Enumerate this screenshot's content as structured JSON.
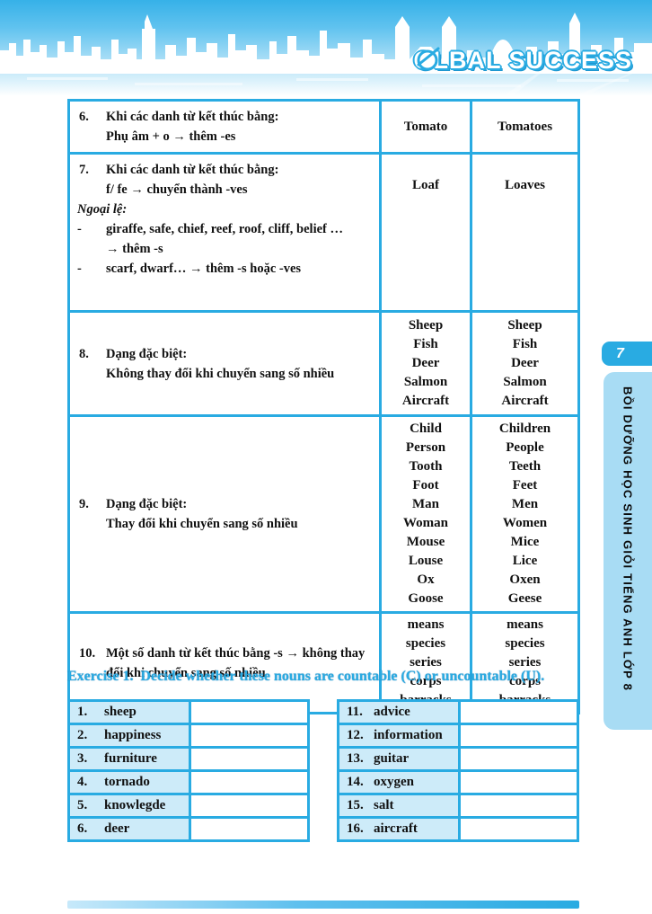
{
  "header": {
    "logo_prefix": "GL",
    "logo_suffix": "BAL SUCCESS"
  },
  "page_badge": "7",
  "sidebar_text": "BỒI DƯỠNG HỌC SINH GIỎI TIẾNG ANH LỚP 8",
  "grammar_table": {
    "rows": [
      {
        "num": "6.",
        "valign": "top",
        "cell_valign": "middle",
        "desc_lines": [
          {
            "text": "Khi các danh từ kết thúc bằng:",
            "kind": "indent"
          },
          {
            "text": "Phụ âm + o → thêm -es",
            "kind": "indent"
          }
        ],
        "singular": [
          "Tomato"
        ],
        "plural": [
          "Tomatoes"
        ]
      },
      {
        "num": "7.",
        "valign": "top",
        "cell_valign": "top",
        "desc_lines": [
          {
            "text": "Khi các danh từ kết thúc bằng:",
            "kind": "indent"
          },
          {
            "text": "f/ fe → chuyển thành -ves",
            "kind": "indent"
          },
          {
            "text": "Ngoại lệ:",
            "kind": "flush-italic"
          },
          {
            "text": "giraffe, safe, chief, reef, roof, cliff, belief …",
            "kind": "bullet"
          },
          {
            "text": "→ thêm -s",
            "kind": "indent"
          },
          {
            "text": "scarf, dwarf… → thêm -s hoặc -ves",
            "kind": "bullet"
          }
        ],
        "singular": [
          "Loaf"
        ],
        "plural": [
          "Loaves"
        ]
      },
      {
        "num": "8.",
        "valign": "middle",
        "cell_valign": "middle",
        "desc_lines": [
          {
            "text": "Dạng đặc biệt:",
            "kind": "indent"
          },
          {
            "text": "Không thay đổi khi chuyển sang số nhiều",
            "kind": "indent"
          }
        ],
        "singular": [
          "Sheep",
          "Fish",
          "Deer",
          "Salmon",
          "Aircraft"
        ],
        "plural": [
          "Sheep",
          "Fish",
          "Deer",
          "Salmon",
          "Aircraft"
        ]
      },
      {
        "num": "9.",
        "valign": "middle",
        "cell_valign": "middle",
        "desc_lines": [
          {
            "text": "Dạng đặc biệt:",
            "kind": "indent"
          },
          {
            "text": "Thay đổi khi chuyển sang số nhiều",
            "kind": "indent"
          }
        ],
        "singular": [
          "Child",
          "Person",
          "Tooth",
          "Foot",
          "Man",
          "Woman",
          "Mouse",
          "Louse",
          "Ox",
          "Goose"
        ],
        "plural": [
          "Children",
          "People",
          "Teeth",
          "Feet",
          "Men",
          "Women",
          "Mice",
          "Lice",
          "Oxen",
          "Geese"
        ]
      },
      {
        "num": "10.",
        "valign": "middle",
        "cell_valign": "middle",
        "desc_lines": [
          {
            "text": "Một số danh từ kết thúc bằng -s → không thay",
            "kind": "indent"
          },
          {
            "text": "đổi khi chuyển sang số nhiều",
            "kind": "indent"
          }
        ],
        "singular": [
          "means",
          "species",
          "series",
          "corps",
          "barracks"
        ],
        "plural": [
          "means",
          "species",
          "series",
          "corps",
          "barracks"
        ]
      }
    ]
  },
  "exercise": {
    "heading_label": "Exercise 1.",
    "heading_text": "Decide whether these nouns are countable (C) or uncountable (U).",
    "left_items": [
      {
        "num": "1.",
        "word": "sheep"
      },
      {
        "num": "2.",
        "word": "happiness"
      },
      {
        "num": "3.",
        "word": "furniture"
      },
      {
        "num": "4.",
        "word": "tornado"
      },
      {
        "num": "5.",
        "word": "knowlegde"
      },
      {
        "num": "6.",
        "word": "deer"
      }
    ],
    "right_items": [
      {
        "num": "11.",
        "word": "advice"
      },
      {
        "num": "12.",
        "word": "information"
      },
      {
        "num": "13.",
        "word": "guitar"
      },
      {
        "num": "14.",
        "word": "oxygen"
      },
      {
        "num": "15.",
        "word": "salt"
      },
      {
        "num": "16.",
        "word": "aircraft"
      }
    ]
  },
  "colors": {
    "table_border": "#29ABE2",
    "exercise_cell_bg": "#CDEBF9",
    "heading_blue": "#29ABE2",
    "sidebar_tab_bg": "#A8DCF4",
    "badge_bg": "#29ABE2",
    "header_top_blue": "#36B1E8"
  }
}
